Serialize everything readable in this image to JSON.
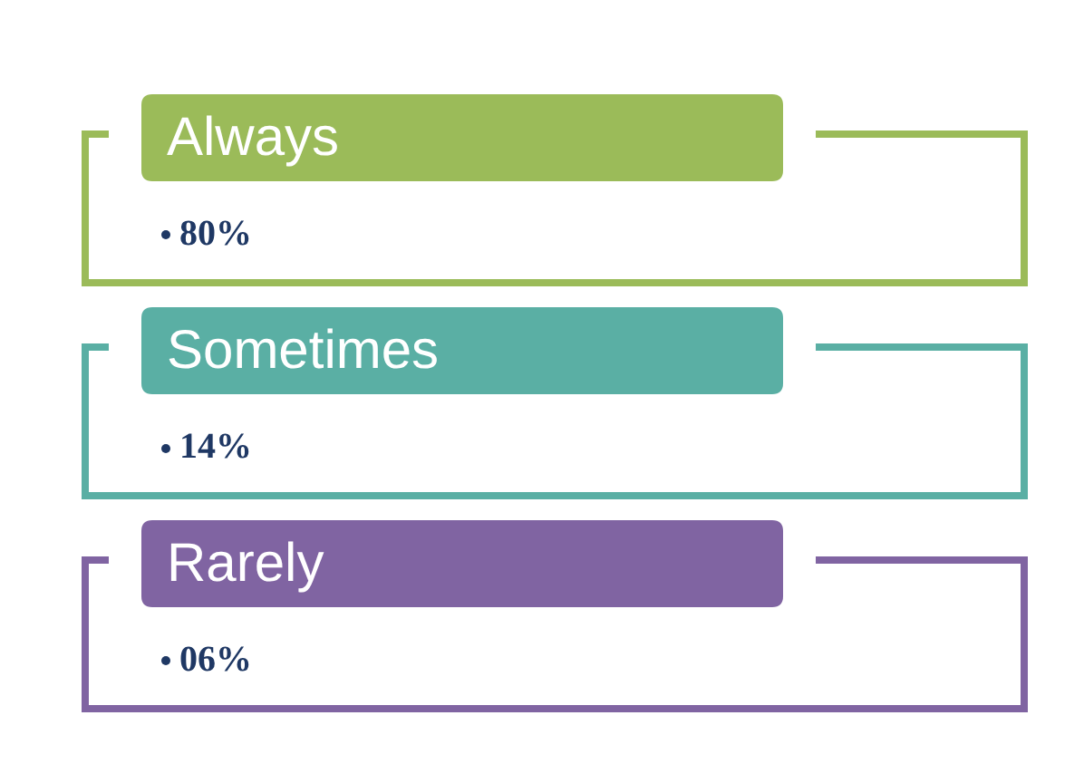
{
  "chart_data": {
    "type": "other",
    "categories": [
      "Always",
      "Sometimes",
      "Rarely"
    ],
    "values": [
      80,
      14,
      6
    ],
    "value_labels": [
      "80%",
      "14%",
      "06%"
    ],
    "colors": [
      "#9bbb59",
      "#5aafa4",
      "#8064a2"
    ]
  }
}
